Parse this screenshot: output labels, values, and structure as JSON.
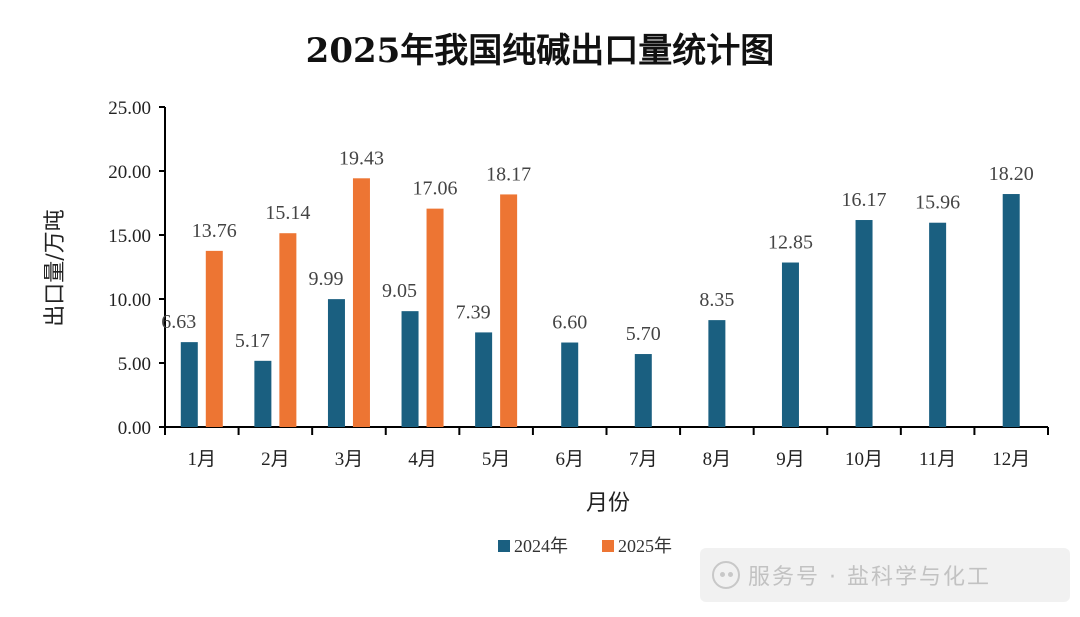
{
  "chart_data": {
    "type": "bar",
    "title": "2025年我国纯碱出口量统计图",
    "xlabel": "月份",
    "ylabel": "出口量/万吨",
    "categories": [
      "1月",
      "2月",
      "3月",
      "4月",
      "5月",
      "6月",
      "7月",
      "8月",
      "9月",
      "10月",
      "11月",
      "12月"
    ],
    "series": [
      {
        "name": "2024年",
        "color": "#1a5f80",
        "values": [
          6.63,
          5.17,
          9.99,
          9.05,
          7.39,
          6.6,
          5.7,
          8.35,
          12.85,
          16.17,
          15.96,
          18.2
        ],
        "labels": [
          "6.63",
          "5.17",
          "9.99",
          "9.05",
          "7.39",
          "6.60",
          "5.70",
          "8.35",
          "12.85",
          "16.17",
          "15.96",
          "18.20"
        ]
      },
      {
        "name": "2025年",
        "color": "#ed7533",
        "values": [
          13.76,
          15.14,
          19.43,
          17.06,
          18.17,
          null,
          null,
          null,
          null,
          null,
          null,
          null
        ],
        "labels": [
          "13.76",
          "15.14",
          "19.43",
          "17.06",
          "18.17",
          "",
          "",
          "",
          "",
          "",
          "",
          ""
        ]
      }
    ],
    "ylim": [
      0,
      25
    ],
    "yticks": [
      "0.00",
      "5.00",
      "10.00",
      "15.00",
      "20.00",
      "25.00"
    ],
    "ytick_values": [
      0,
      5,
      10,
      15,
      20,
      25
    ],
    "grid": false,
    "legend_position": "bottom"
  },
  "watermark": {
    "icon": "wechat-icon",
    "text": "服务号 · 盐科学与化工"
  }
}
